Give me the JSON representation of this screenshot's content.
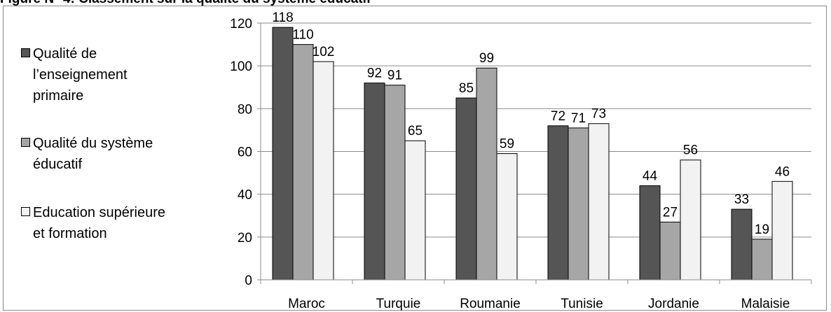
{
  "figure_title": "Figure N° 4: Classement sur la qualité du système éducatif",
  "chart_data": {
    "type": "bar",
    "categories": [
      "Maroc",
      "Turquie",
      "Roumanie",
      "Tunisie",
      "Jordanie",
      "Malaisie"
    ],
    "series": [
      {
        "name": "Qualité de l’enseignement primaire",
        "legend_lines": [
          "Qualité de",
          "l’enseignement",
          "primaire"
        ],
        "color": "#555555",
        "values": [
          118,
          92,
          85,
          72,
          44,
          33
        ]
      },
      {
        "name": "Qualité du système éducatif",
        "legend_lines": [
          "Qualité du système",
          "éducatif"
        ],
        "color": "#a6a6a6",
        "values": [
          110,
          91,
          99,
          71,
          27,
          19
        ]
      },
      {
        "name": "Education supérieure et formation",
        "legend_lines": [
          "Education supérieure",
          "et formation"
        ],
        "color": "#f2f2f2",
        "values": [
          102,
          65,
          59,
          73,
          56,
          46
        ]
      }
    ],
    "ylim": [
      0,
      120
    ],
    "yticks": [
      0,
      20,
      40,
      60,
      80,
      100,
      120
    ],
    "grid": true,
    "legend_position": "left",
    "title": "",
    "xlabel": "",
    "ylabel": ""
  }
}
